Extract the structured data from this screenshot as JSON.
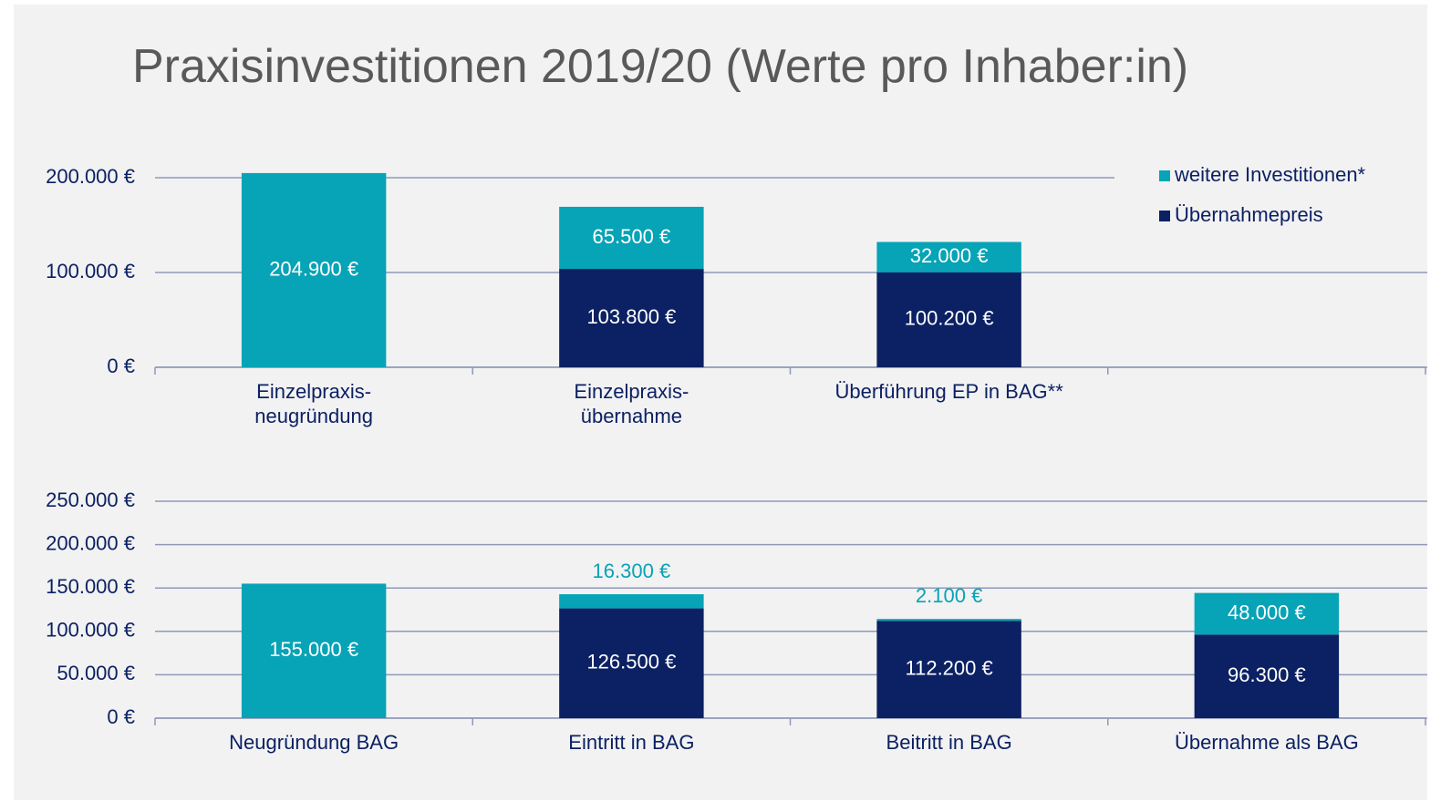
{
  "title": "Praxisinvestitionen 2019/20 (Werte pro Inhaber:in)",
  "chart_data": [
    {
      "type": "bar",
      "stacked": true,
      "legend": "top-right",
      "categories": [
        "Einzelpraxis-\nneugründung",
        "Einzelpraxis-\nübernahme",
        "Überführung EP in BAG**",
        null
      ],
      "series": [
        {
          "name": "Übernahmepreis",
          "color": "#0c2163",
          "values": [
            null,
            103800,
            100200,
            null
          ],
          "value_labels": [
            null,
            "103.800 €",
            "100.200 €",
            null
          ]
        },
        {
          "name": "weitere Investitionen*",
          "color": "#07a3b6",
          "values": [
            204900,
            65500,
            32000,
            null
          ],
          "value_labels": [
            "204.900 €",
            "65.500 €",
            "32.000 €",
            null
          ]
        }
      ],
      "ylim": [
        0,
        200000
      ],
      "yticks": [
        {
          "value": 0,
          "label": "0 €"
        },
        {
          "value": 100000,
          "label": "100.000 €"
        },
        {
          "value": 200000,
          "label": "200.000 €"
        }
      ],
      "grid": true
    },
    {
      "type": "bar",
      "stacked": true,
      "legend": null,
      "categories": [
        "Neugründung BAG",
        "Eintritt in BAG",
        "Beitritt in BAG",
        "Übernahme als BAG"
      ],
      "series": [
        {
          "name": "Übernahmepreis",
          "color": "#0c2163",
          "values": [
            null,
            126500,
            112200,
            96300
          ],
          "value_labels": [
            null,
            "126.500 €",
            "112.200 €",
            "96.300 €"
          ]
        },
        {
          "name": "weitere Investitionen*",
          "color": "#07a3b6",
          "values": [
            155000,
            16300,
            2100,
            48000
          ],
          "value_labels": [
            "155.000 €",
            "16.300 €",
            "2.100 €",
            "48.000 €"
          ]
        }
      ],
      "ylim": [
        0,
        250000
      ],
      "yticks": [
        {
          "value": 0,
          "label": "0 €"
        },
        {
          "value": 50000,
          "label": "50.000 €"
        },
        {
          "value": 100000,
          "label": "100.000 €"
        },
        {
          "value": 150000,
          "label": "150.000 €"
        },
        {
          "value": 200000,
          "label": "200.000 €"
        },
        {
          "value": 250000,
          "label": "250.000 €"
        }
      ],
      "grid": true
    }
  ]
}
